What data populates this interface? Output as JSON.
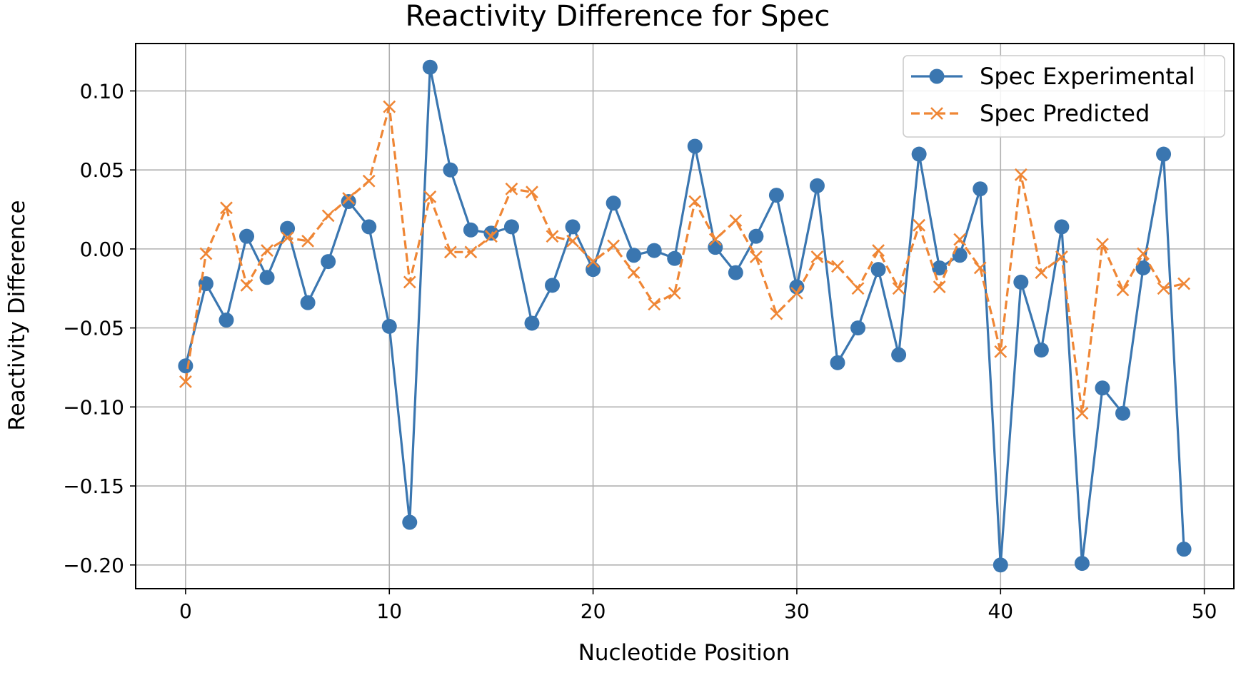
{
  "chart_data": {
    "type": "line",
    "title": "Reactivity Difference for Spec",
    "xlabel": "Nucleotide Position",
    "ylabel": "Reactivity Difference",
    "xlim": [
      -2.45,
      51.45
    ],
    "ylim": [
      -0.215,
      0.13
    ],
    "xticks": [
      0,
      10,
      20,
      30,
      40,
      50
    ],
    "xtick_labels": [
      "0",
      "10",
      "20",
      "30",
      "40",
      "50"
    ],
    "yticks": [
      -0.2,
      -0.15,
      -0.1,
      -0.05,
      0.0,
      0.05,
      0.1
    ],
    "ytick_labels": [
      "−0.20",
      "−0.15",
      "−0.10",
      "−0.05",
      "0.00",
      "0.05",
      "0.10"
    ],
    "grid": true,
    "legend_position": "top-right",
    "x": [
      0,
      1,
      2,
      3,
      4,
      5,
      6,
      7,
      8,
      9,
      10,
      11,
      12,
      13,
      14,
      15,
      16,
      17,
      18,
      19,
      20,
      21,
      22,
      23,
      24,
      25,
      26,
      27,
      28,
      29,
      30,
      31,
      32,
      33,
      34,
      35,
      36,
      37,
      38,
      39,
      40,
      41,
      42,
      43,
      44,
      45,
      46,
      47,
      48,
      49
    ],
    "series": [
      {
        "name": "Spec Experimental",
        "color": "#3a76b0",
        "line_style": "solid",
        "marker": "circle",
        "values": [
          -0.074,
          -0.022,
          -0.045,
          0.008,
          -0.018,
          0.013,
          -0.034,
          -0.008,
          0.03,
          0.014,
          -0.049,
          -0.173,
          0.115,
          0.05,
          0.012,
          0.01,
          0.014,
          -0.047,
          -0.023,
          0.014,
          -0.013,
          0.029,
          -0.004,
          -0.001,
          -0.006,
          0.065,
          0.001,
          -0.015,
          0.008,
          0.034,
          -0.024,
          0.04,
          -0.072,
          -0.05,
          -0.013,
          -0.067,
          0.06,
          -0.012,
          -0.004,
          0.038,
          -0.2,
          -0.021,
          -0.064,
          0.014,
          -0.199,
          -0.088,
          -0.104,
          -0.012,
          0.06,
          -0.19
        ]
      },
      {
        "name": "Spec Predicted",
        "color": "#ef8635",
        "line_style": "dashed",
        "marker": "x",
        "values": [
          -0.084,
          -0.003,
          0.026,
          -0.023,
          -0.001,
          0.007,
          0.005,
          0.021,
          0.032,
          0.043,
          0.09,
          -0.021,
          0.033,
          -0.002,
          -0.002,
          0.008,
          0.038,
          0.036,
          0.008,
          0.005,
          -0.008,
          0.002,
          -0.015,
          -0.035,
          -0.028,
          0.03,
          0.006,
          0.018,
          -0.005,
          -0.041,
          -0.028,
          -0.005,
          -0.011,
          -0.025,
          -0.001,
          -0.025,
          0.015,
          -0.024,
          0.006,
          -0.012,
          -0.065,
          0.047,
          -0.015,
          -0.005,
          -0.104,
          0.003,
          -0.026,
          -0.003,
          -0.025,
          -0.022
        ]
      }
    ]
  }
}
